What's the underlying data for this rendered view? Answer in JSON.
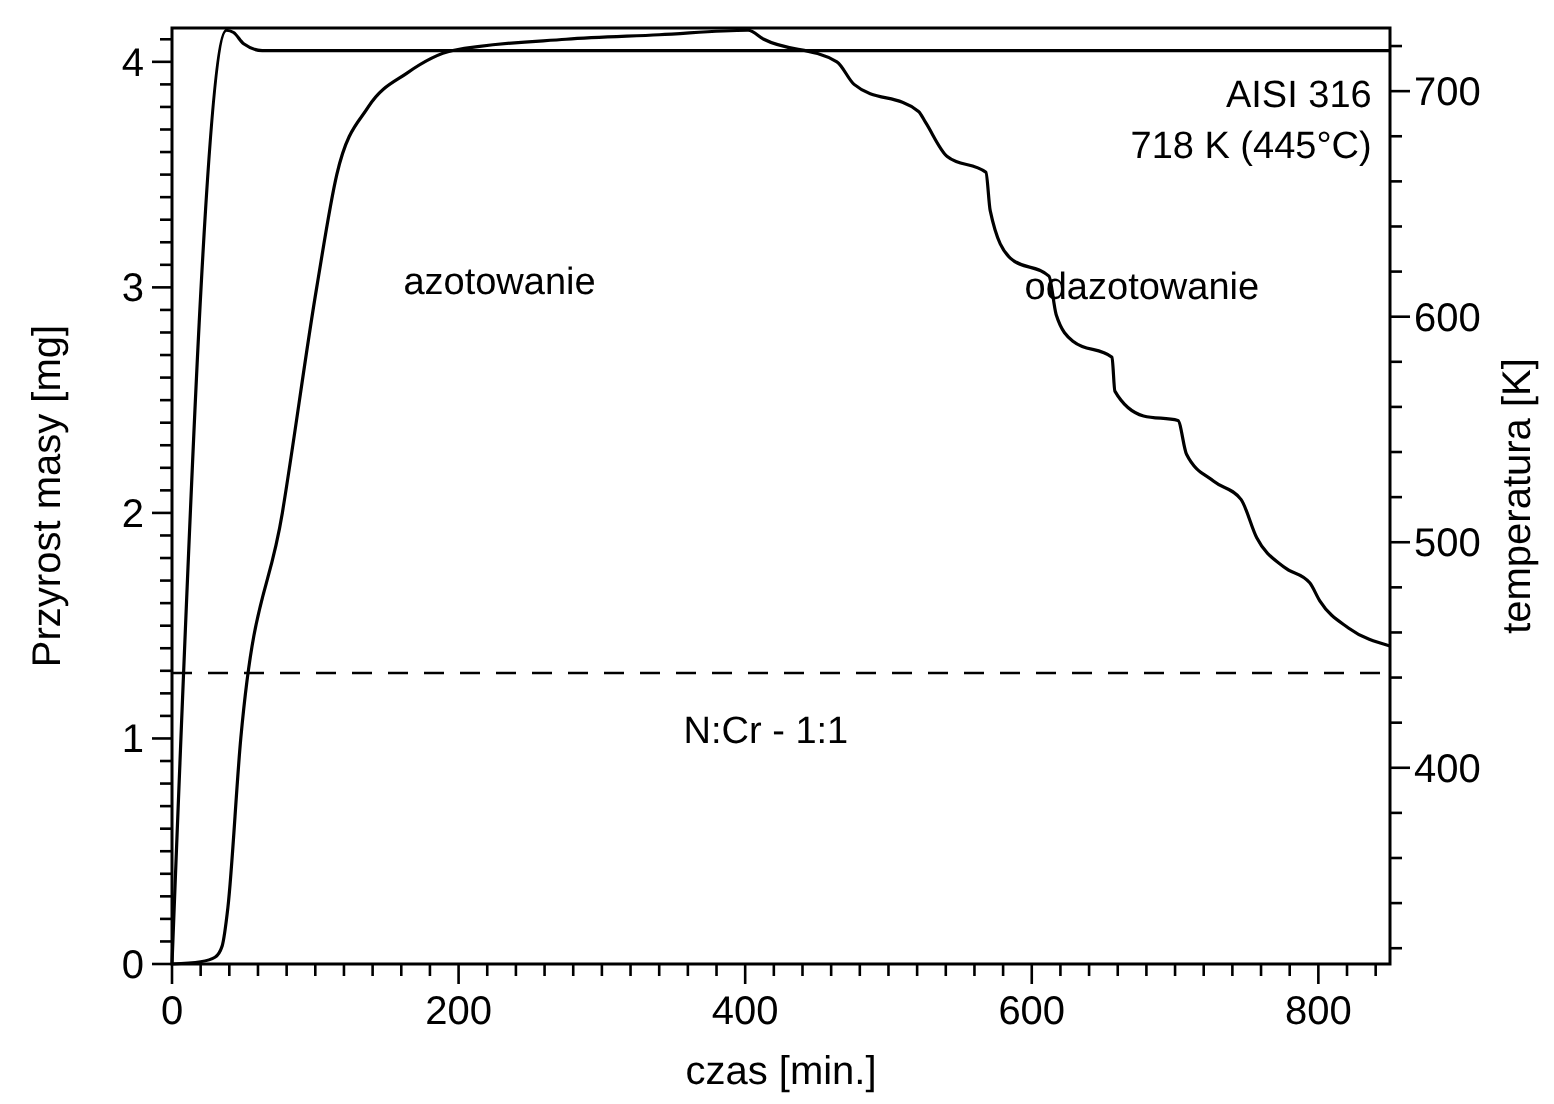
{
  "chart_data": {
    "type": "line",
    "xlabel": "czas [min.]",
    "ylabel": "Przyrost masy [mg]",
    "y2label": "temperatura [K]",
    "xlim": [
      0,
      850
    ],
    "ylim": [
      0,
      4.15
    ],
    "y2lim": [
      313,
      728
    ],
    "xticks": [
      0,
      {
        "value": 20,
        "label": null
      },
      {
        "value": 40,
        "label": null
      },
      {
        "value": 60,
        "label": null
      },
      {
        "value": 80,
        "label": null
      },
      {
        "value": 100,
        "label": null
      },
      {
        "value": 120,
        "label": null
      },
      {
        "value": 140,
        "label": null
      },
      {
        "value": 160,
        "label": null
      },
      {
        "value": 180,
        "label": null
      },
      200,
      {
        "value": 220,
        "label": null
      },
      {
        "value": 240,
        "label": null
      },
      {
        "value": 260,
        "label": null
      },
      {
        "value": 280,
        "label": null
      },
      {
        "value": 300,
        "label": null
      },
      {
        "value": 320,
        "label": null
      },
      {
        "value": 340,
        "label": null
      },
      {
        "value": 360,
        "label": null
      },
      {
        "value": 380,
        "label": null
      },
      400,
      {
        "value": 420,
        "label": null
      },
      {
        "value": 440,
        "label": null
      },
      {
        "value": 460,
        "label": null
      },
      {
        "value": 480,
        "label": null
      },
      {
        "value": 500,
        "label": null
      },
      {
        "value": 520,
        "label": null
      },
      {
        "value": 540,
        "label": null
      },
      {
        "value": 560,
        "label": null
      },
      {
        "value": 580,
        "label": null
      },
      600,
      {
        "value": 620,
        "label": null
      },
      {
        "value": 640,
        "label": null
      },
      {
        "value": 660,
        "label": null
      },
      {
        "value": 680,
        "label": null
      },
      {
        "value": 700,
        "label": null
      },
      {
        "value": 720,
        "label": null
      },
      {
        "value": 740,
        "label": null
      },
      {
        "value": 760,
        "label": null
      },
      {
        "value": 780,
        "label": null
      },
      800,
      {
        "value": 820,
        "label": null
      },
      {
        "value": 840,
        "label": null
      }
    ],
    "yticks": [
      0,
      {
        "value": 0.1,
        "label": null
      },
      {
        "value": 0.2,
        "label": null
      },
      {
        "value": 0.3,
        "label": null
      },
      {
        "value": 0.4,
        "label": null
      },
      {
        "value": 0.5,
        "label": null
      },
      {
        "value": 0.6,
        "label": null
      },
      {
        "value": 0.7,
        "label": null
      },
      {
        "value": 0.8,
        "label": null
      },
      {
        "value": 0.9,
        "label": null
      },
      1,
      {
        "value": 1.1,
        "label": null
      },
      {
        "value": 1.2,
        "label": null
      },
      {
        "value": 1.3,
        "label": null
      },
      {
        "value": 1.4,
        "label": null
      },
      {
        "value": 1.5,
        "label": null
      },
      {
        "value": 1.6,
        "label": null
      },
      {
        "value": 1.7,
        "label": null
      },
      {
        "value": 1.8,
        "label": null
      },
      {
        "value": 1.9,
        "label": null
      },
      2,
      {
        "value": 2.1,
        "label": null
      },
      {
        "value": 2.2,
        "label": null
      },
      {
        "value": 2.3,
        "label": null
      },
      {
        "value": 2.4,
        "label": null
      },
      {
        "value": 2.5,
        "label": null
      },
      {
        "value": 2.6,
        "label": null
      },
      {
        "value": 2.7,
        "label": null
      },
      {
        "value": 2.8,
        "label": null
      },
      {
        "value": 2.9,
        "label": null
      },
      3,
      {
        "value": 3.1,
        "label": null
      },
      {
        "value": 3.2,
        "label": null
      },
      {
        "value": 3.3,
        "label": null
      },
      {
        "value": 3.4,
        "label": null
      },
      {
        "value": 3.5,
        "label": null
      },
      {
        "value": 3.6,
        "label": null
      },
      {
        "value": 3.7,
        "label": null
      },
      {
        "value": 3.8,
        "label": null
      },
      {
        "value": 3.9,
        "label": null
      },
      4,
      {
        "value": 4.1,
        "label": null
      }
    ],
    "y2ticks": [
      {
        "value": 320,
        "label": null
      },
      {
        "value": 340,
        "label": null
      },
      {
        "value": 360,
        "label": null
      },
      {
        "value": 380,
        "label": null
      },
      400,
      {
        "value": 420,
        "label": null
      },
      {
        "value": 440,
        "label": null
      },
      {
        "value": 460,
        "label": null
      },
      {
        "value": 480,
        "label": null
      },
      500,
      {
        "value": 520,
        "label": null
      },
      {
        "value": 540,
        "label": null
      },
      {
        "value": 560,
        "label": null
      },
      {
        "value": 580,
        "label": null
      },
      600,
      {
        "value": 620,
        "label": null
      },
      {
        "value": 640,
        "label": null
      },
      {
        "value": 660,
        "label": null
      },
      {
        "value": 680,
        "label": null
      },
      700,
      {
        "value": 720,
        "label": null
      }
    ],
    "series": [
      {
        "color": "#000000",
        "x": [
          0,
          20,
          30,
          35,
          39,
          48,
          77,
          101,
          115,
          137,
          164,
          196,
          275,
          340,
          402,
          413,
          464,
          476,
          521,
          526,
          541,
          568,
          571,
          585,
          612,
          617,
          629,
          656,
          658,
          678,
          702,
          708,
          727,
          746,
          757,
          776,
          794,
          801,
          821,
          850
        ],
        "values": [
          0,
          0.01,
          0.03,
          0.08,
          0.25,
          1.0,
          2.0,
          3.0,
          3.5,
          3.8,
          3.95,
          4.05,
          4.1,
          4.12,
          4.14,
          4.1,
          4.0,
          3.9,
          3.78,
          3.73,
          3.58,
          3.51,
          3.34,
          3.13,
          3.05,
          2.88,
          2.76,
          2.69,
          2.54,
          2.43,
          2.41,
          2.26,
          2.14,
          2.06,
          1.89,
          1.76,
          1.69,
          1.61,
          1.49,
          1.41
        ]
      },
      {
        "color": "#000000",
        "axis": "y2",
        "x": [
          0,
          38,
          43,
          50,
          63,
          850
        ],
        "values": [
          313,
          727,
          726,
          721,
          718,
          718
        ]
      }
    ],
    "ref_lines": [
      {
        "axis": "y",
        "value": 1.29,
        "line_style": "dashed",
        "color": "#000000"
      }
    ],
    "annotations": [
      "azotowanie",
      "odazotowanie",
      "AISI 316",
      "718 K (445°C)",
      "N:Cr - 1:1"
    ],
    "grid": false,
    "line_style": "solid"
  }
}
